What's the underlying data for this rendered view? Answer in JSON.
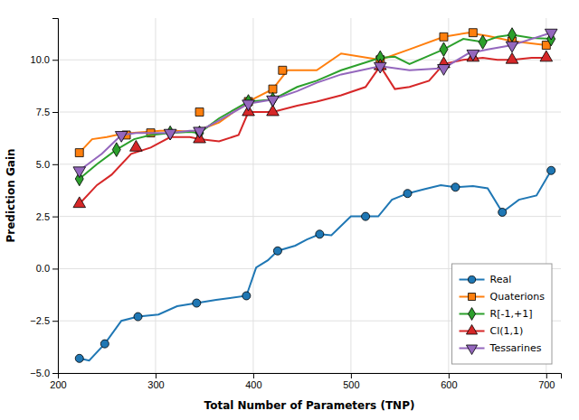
{
  "chart_data": {
    "type": "line",
    "x_label": "Total Number of Parameters (TNP)",
    "y_label": "Prediction Gain",
    "xlim": [
      200,
      715
    ],
    "ylim": [
      -5.0,
      12.0
    ],
    "xticks": [
      200,
      300,
      400,
      500,
      600,
      700
    ],
    "yticks": [
      {
        "value": -5.0,
        "label": "−5.0"
      },
      {
        "value": -2.5,
        "label": "−2.5"
      },
      {
        "value": 0.0,
        "label": "0.0"
      },
      2.5,
      {
        "value": 5.0,
        "label": "5.0"
      },
      7.5,
      {
        "value": 10.0,
        "label": "10.0"
      }
    ],
    "grid": true,
    "legend": "lower right",
    "series": [
      {
        "name": "Real",
        "color": "#1f77b4",
        "marker": "circle",
        "x": [
          222,
          232,
          248,
          265,
          282,
          303,
          322,
          342,
          362,
          393,
          403,
          415,
          425,
          443,
          455,
          468,
          480,
          500,
          515,
          528,
          542,
          558,
          575,
          592,
          607,
          625,
          640,
          655,
          672,
          690,
          705
        ],
        "values": [
          -4.3,
          -4.4,
          -3.6,
          -2.5,
          -2.3,
          -2.2,
          -1.8,
          -1.65,
          -1.5,
          -1.3,
          0.05,
          0.4,
          0.85,
          1.1,
          1.4,
          1.65,
          1.6,
          2.5,
          2.5,
          2.5,
          3.3,
          3.6,
          3.8,
          4.0,
          3.9,
          3.95,
          3.85,
          2.7,
          3.3,
          3.5,
          4.7
        ],
        "marker_x": [
          222,
          248,
          282,
          342,
          393,
          425,
          468,
          515,
          558,
          607,
          655,
          705
        ],
        "marker_values": [
          -4.3,
          -3.6,
          -2.3,
          -1.65,
          -1.3,
          0.85,
          1.65,
          2.5,
          3.6,
          3.9,
          2.7,
          4.7
        ]
      },
      {
        "name": "Quaterions",
        "color": "#ff7f0e",
        "marker": "square",
        "x": [
          222,
          235,
          250,
          265,
          275,
          290,
          305,
          320,
          340,
          365,
          395,
          420,
          435,
          465,
          490,
          530,
          560,
          595,
          620,
          640,
          665,
          700
        ],
        "values": [
          5.55,
          6.2,
          6.3,
          6.45,
          6.5,
          6.55,
          6.6,
          6.6,
          6.55,
          7.0,
          8.0,
          8.6,
          9.5,
          9.5,
          10.3,
          10.0,
          10.5,
          11.1,
          11.3,
          11.15,
          10.9,
          10.7
        ],
        "marker_x": [
          222,
          270,
          295,
          345,
          395,
          420,
          430,
          530,
          595,
          625,
          665,
          700
        ],
        "marker_values": [
          5.55,
          6.4,
          6.5,
          7.5,
          8.0,
          8.6,
          9.5,
          10.0,
          11.1,
          11.3,
          10.9,
          10.7
        ]
      },
      {
        "name": "R[-1,+1]",
        "color": "#2ca02c",
        "marker": "diamond",
        "x": [
          222,
          240,
          260,
          278,
          295,
          315,
          335,
          345,
          365,
          395,
          420,
          445,
          465,
          490,
          530,
          545,
          560,
          580,
          595,
          615,
          635,
          650,
          665,
          685,
          705
        ],
        "values": [
          4.3,
          5.0,
          5.7,
          6.2,
          6.4,
          6.5,
          6.55,
          6.5,
          7.2,
          8.0,
          8.1,
          8.7,
          9.0,
          9.5,
          10.1,
          10.15,
          9.8,
          10.2,
          10.5,
          11.0,
          10.85,
          11.1,
          11.2,
          11.05,
          11.0
        ],
        "marker_x": [
          222,
          260,
          315,
          345,
          395,
          420,
          530,
          595,
          635,
          665,
          705
        ],
        "marker_values": [
          4.3,
          5.7,
          6.5,
          6.5,
          8.0,
          8.1,
          10.1,
          10.5,
          10.85,
          11.2,
          11.0
        ]
      },
      {
        "name": "Cl(1,1)",
        "color": "#d62728",
        "marker": "triangle-up",
        "x": [
          222,
          240,
          255,
          275,
          295,
          315,
          335,
          345,
          365,
          385,
          395,
          420,
          445,
          465,
          490,
          515,
          530,
          545,
          560,
          580,
          595,
          615,
          635,
          650,
          665,
          685,
          700
        ],
        "values": [
          3.1,
          4.0,
          4.5,
          5.5,
          5.8,
          6.3,
          6.3,
          6.2,
          6.1,
          6.4,
          7.5,
          7.5,
          7.8,
          8.0,
          8.3,
          8.7,
          9.7,
          8.6,
          8.7,
          9.0,
          9.8,
          10.0,
          10.1,
          10.0,
          10.0,
          10.1,
          10.1
        ],
        "marker_x": [
          222,
          280,
          345,
          395,
          420,
          530,
          595,
          625,
          665,
          700
        ],
        "marker_values": [
          3.1,
          5.8,
          6.2,
          7.5,
          7.5,
          9.7,
          9.8,
          10.1,
          10.0,
          10.1
        ]
      },
      {
        "name": "Tessarines",
        "color": "#9467bd",
        "marker": "triangle-down",
        "x": [
          222,
          245,
          265,
          280,
          300,
          315,
          335,
          345,
          365,
          395,
          420,
          445,
          465,
          490,
          530,
          560,
          595,
          620,
          640,
          665,
          685,
          705
        ],
        "values": [
          4.7,
          5.5,
          6.4,
          6.5,
          6.5,
          6.5,
          6.6,
          6.6,
          7.1,
          7.9,
          8.1,
          8.5,
          8.9,
          9.3,
          9.7,
          9.5,
          9.6,
          10.3,
          10.5,
          10.7,
          11.0,
          11.3
        ],
        "marker_x": [
          222,
          265,
          315,
          345,
          395,
          420,
          530,
          595,
          625,
          665,
          705
        ],
        "marker_values": [
          4.7,
          6.4,
          6.5,
          6.6,
          7.9,
          8.1,
          9.7,
          9.6,
          10.3,
          10.7,
          11.3
        ]
      }
    ]
  }
}
